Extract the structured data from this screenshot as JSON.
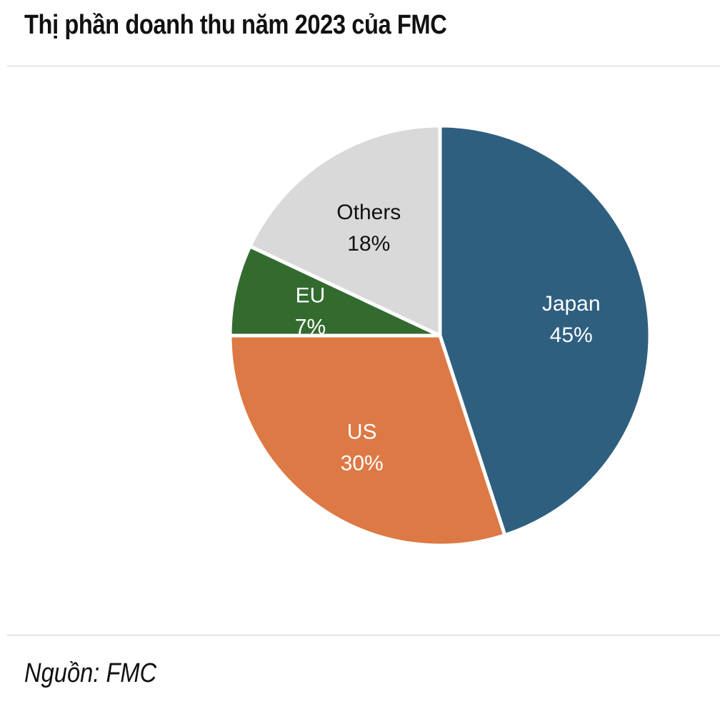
{
  "title": "Thị phần doanh thu năm 2023 của FMC",
  "source": "Nguồn: FMC",
  "chart_data": {
    "type": "pie",
    "title": "Thị phần doanh thu năm 2023 của FMC",
    "unit": "%",
    "slices": [
      {
        "label": "Japan",
        "value": 45,
        "value_label": "45%",
        "color": "#2f5f7f",
        "text_color": "#ffffff"
      },
      {
        "label": "US",
        "value": 30,
        "value_label": "30%",
        "color": "#dd7945",
        "text_color": "#ffffff"
      },
      {
        "label": "EU",
        "value": 7,
        "value_label": "7%",
        "color": "#336b2f",
        "text_color": "#ffffff"
      },
      {
        "label": "Others",
        "value": 18,
        "value_label": "18%",
        "color": "#d9d9d9",
        "text_color": "#111111"
      }
    ],
    "start_angle_deg": 0,
    "direction": "clockwise",
    "legend": "none"
  }
}
